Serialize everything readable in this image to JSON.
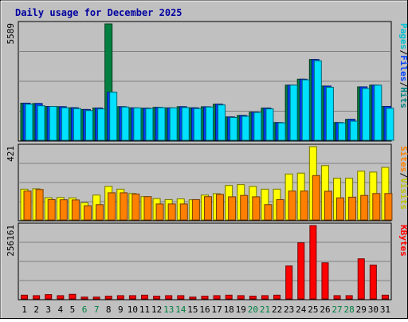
{
  "chart_data": [
    {
      "type": "bar",
      "title": "Daily usage for December 2025",
      "panel": "top",
      "ymax_label": "5589",
      "ylim": [
        0,
        5589
      ],
      "grid": true,
      "categories": [
        "1",
        "2",
        "3",
        "4",
        "5",
        "6",
        "7",
        "8",
        "9",
        "10",
        "11",
        "12",
        "13",
        "14",
        "15",
        "16",
        "17",
        "18",
        "19",
        "20",
        "21",
        "22",
        "23",
        "24",
        "25",
        "26",
        "27",
        "28",
        "29",
        "30",
        "31"
      ],
      "weekend_days": [
        "6",
        "7",
        "13",
        "14",
        "20",
        "21",
        "27",
        "28"
      ],
      "legend_position": "right",
      "legend": [
        "Pages",
        "/",
        "Files",
        "/",
        "Hits"
      ],
      "series": [
        {
          "name": "Hits",
          "color": "#008040",
          "values": [
            1782,
            1767,
            1627,
            1614,
            1563,
            1478,
            1551,
            5589,
            1614,
            1556,
            1542,
            1581,
            1556,
            1614,
            1559,
            1610,
            1734,
            1120,
            1193,
            1348,
            1547,
            850,
            2648,
            2936,
            3880,
            2605,
            850,
            1006,
            2566,
            2648,
            1627
          ]
        },
        {
          "name": "Files",
          "color": "#0040ff",
          "values": [
            1782,
            1767,
            1627,
            1614,
            1563,
            1478,
            1551,
            2310,
            1614,
            1556,
            1542,
            1581,
            1556,
            1614,
            1559,
            1610,
            1734,
            1120,
            1193,
            1348,
            1547,
            850,
            2648,
            2936,
            3880,
            2605,
            850,
            1006,
            2566,
            2648,
            1627
          ]
        },
        {
          "name": "Pages",
          "color": "#00e0ff",
          "values": [
            1734,
            1657,
            1627,
            1563,
            1523,
            1426,
            1508,
            2310,
            1596,
            1556,
            1523,
            1568,
            1556,
            1573,
            1523,
            1596,
            1697,
            1091,
            1152,
            1334,
            1508,
            836,
            2648,
            2903,
            3820,
            2546,
            836,
            917,
            2488,
            2648,
            1537
          ]
        }
      ]
    },
    {
      "type": "bar",
      "panel": "middle",
      "ymax_label": "421",
      "ylim": [
        0,
        421
      ],
      "grid": true,
      "legend_position": "right",
      "legend": [
        "Sites",
        "/",
        "Visits"
      ],
      "series": [
        {
          "name": "Visits",
          "color": "#ffff00",
          "values": [
            177,
            179,
            128,
            129,
            127,
            99,
            143,
            193,
            177,
            152,
            134,
            123,
            117,
            121,
            116,
            143,
            151,
            198,
            203,
            193,
            177,
            177,
            264,
            269,
            421,
            312,
            240,
            240,
            280,
            275,
            302
          ]
        },
        {
          "name": "Sites",
          "color": "#ff8000",
          "values": [
            166,
            175,
            117,
            116,
            115,
            82,
            88,
            156,
            156,
            149,
            134,
            92,
            92,
            92,
            117,
            134,
            147,
            133,
            141,
            133,
            88,
            117,
            166,
            166,
            255,
            165,
            127,
            131,
            141,
            152,
            152
          ]
        }
      ]
    },
    {
      "type": "bar",
      "panel": "bottom",
      "ymax_label": "256161",
      "ylim": [
        0,
        256161
      ],
      "grid": true,
      "legend_position": "right",
      "legend": [
        "KBytes"
      ],
      "series": [
        {
          "name": "KBytes",
          "color": "#ff0000",
          "values": [
            13000,
            11300,
            15000,
            11300,
            16000,
            6300,
            6300,
            9400,
            11300,
            11300,
            13000,
            9400,
            11300,
            11300,
            6300,
            9400,
            11300,
            13000,
            11300,
            9400,
            11300,
            13000,
            115000,
            196000,
            256161,
            126000,
            11300,
            11300,
            140000,
            118000,
            13000
          ]
        }
      ]
    }
  ]
}
